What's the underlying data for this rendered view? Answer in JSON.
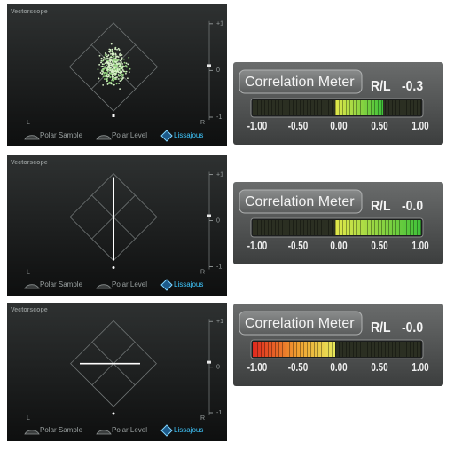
{
  "panels": [
    {
      "vectorscope": {
        "title": "Vectorscope",
        "scale": [
          "+1",
          "0",
          "-1"
        ],
        "channels": [
          "L",
          "R"
        ],
        "modes": [
          "Polar Sample",
          "Polar Level",
          "Lissajous"
        ]
      },
      "meter": {
        "title": "Correlation Meter",
        "channel": "R/L",
        "readout": "-0.3",
        "scale": [
          "-1.00",
          "-0.50",
          "0.00",
          "0.50",
          "1.00"
        ]
      }
    },
    {
      "vectorscope": {
        "title": "Vectorscope",
        "scale": [
          "+1",
          "0",
          "-1"
        ],
        "channels": [
          "L",
          "R"
        ],
        "modes": [
          "Polar Sample",
          "Polar Level",
          "Lissajous"
        ]
      },
      "meter": {
        "title": "Correlation Meter",
        "channel": "R/L",
        "readout": "-0.0",
        "scale": [
          "-1.00",
          "-0.50",
          "0.00",
          "0.50",
          "1.00"
        ]
      }
    },
    {
      "vectorscope": {
        "title": "Vectorscope",
        "scale": [
          "+1",
          "0",
          "-1"
        ],
        "channels": [
          "L",
          "R"
        ],
        "modes": [
          "Polar Sample",
          "Polar Level",
          "Lissajous"
        ]
      },
      "meter": {
        "title": "Correlation Meter",
        "channel": "R/L",
        "readout": "-0.0",
        "scale": [
          "-1.00",
          "-0.50",
          "0.00",
          "0.50",
          "1.00"
        ]
      }
    }
  ]
}
